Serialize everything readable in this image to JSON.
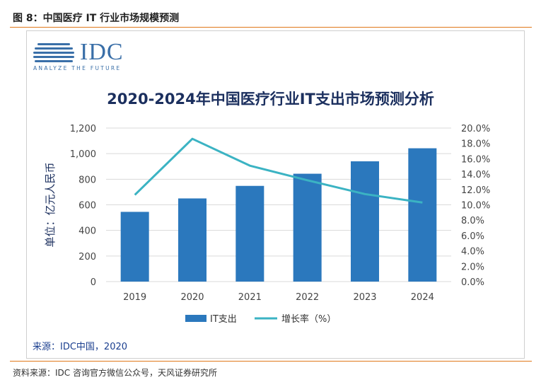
{
  "figure_title": "图 8：中国医疗 IT 行业市场规模预测",
  "logo": {
    "text": "IDC",
    "tagline": "ANALYZE THE FUTURE"
  },
  "source_inner": "来源：IDC中国，2020",
  "source_outer": "资料来源：IDC 咨询官方微信公众号，天风证券研究所",
  "colors": {
    "bar": "#2b78bd",
    "line": "#3bb3c3",
    "title": "#1b2f5e",
    "accent_rule": "#e0781a"
  },
  "chart_data": {
    "type": "bar",
    "title": "2020-2024年中国医疗行业IT支出市场预测分析",
    "categories": [
      "2019",
      "2020",
      "2021",
      "2022",
      "2023",
      "2024"
    ],
    "ylabel": "单位：亿元人民币",
    "ylim": [
      0,
      1200
    ],
    "yticks": [
      0,
      200,
      400,
      600,
      800,
      1000,
      1200
    ],
    "ytick_labels": [
      "0",
      "200",
      "400",
      "600",
      "800",
      "1,000",
      "1,200"
    ],
    "y2lim": [
      0,
      20
    ],
    "y2ticks": [
      0,
      2,
      4,
      6,
      8,
      10,
      12,
      14,
      16,
      18,
      20
    ],
    "y2tick_labels": [
      "0.0%",
      "2.0%",
      "4.0%",
      "6.0%",
      "8.0%",
      "10.0%",
      "12.0%",
      "14.0%",
      "16.0%",
      "18.0%",
      "20.0%"
    ],
    "grid": true,
    "legend_position": "bottom",
    "series": [
      {
        "name": "IT支出",
        "type": "bar",
        "axis": "left",
        "values": [
          545,
          650,
          748,
          843,
          940,
          1042
        ]
      },
      {
        "name": "增长率（%）",
        "type": "line",
        "axis": "right",
        "values": [
          11.3,
          18.6,
          15.1,
          13.2,
          11.4,
          10.3
        ]
      }
    ]
  }
}
